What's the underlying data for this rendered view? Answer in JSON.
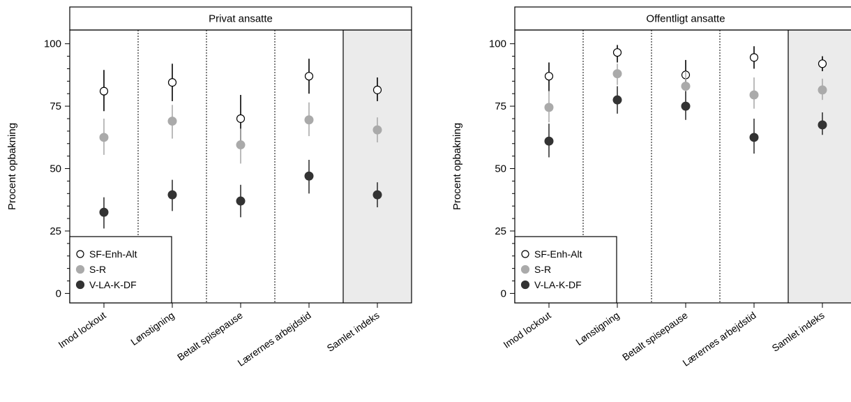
{
  "chart_data": {
    "type": "scatter",
    "ylabel": "Procent opbakning",
    "ylim": [
      0,
      100
    ],
    "yticks": [
      0,
      25,
      50,
      75,
      100
    ],
    "categories": [
      "Imod lockout",
      "Lønstigning",
      "Betalt spisepause",
      "Lærernes arbejdstid",
      "Samlet indeks"
    ],
    "highlighted_category": "Samlet indeks",
    "highlight_color": "#ebebeb",
    "series_styles": [
      {
        "name": "SF-Enh-Alt",
        "marker": "open-circle",
        "color": "#000000"
      },
      {
        "name": "S-R",
        "marker": "filled-circle",
        "color": "#aaaaaa"
      },
      {
        "name": "V-LA-K-DF",
        "marker": "filled-circle",
        "color": "#333333"
      }
    ],
    "legend_position": "bottom-left",
    "panels": [
      {
        "title": "Privat ansatte",
        "series": [
          {
            "name": "SF-Enh-Alt",
            "values": [
              81,
              84.5,
              70,
              87,
              81.5
            ],
            "lower": [
              73,
              77,
              61,
              80,
              77
            ],
            "upper": [
              89.5,
              92,
              79.5,
              94,
              86.5
            ]
          },
          {
            "name": "S-R",
            "values": [
              62.5,
              69,
              59.5,
              69.5,
              65.5
            ],
            "lower": [
              55.5,
              62,
              52,
              63,
              60.5
            ],
            "upper": [
              70,
              75.5,
              66,
              76.5,
              70.5
            ]
          },
          {
            "name": "V-LA-K-DF",
            "values": [
              32.5,
              39.5,
              37,
              47,
              39.5
            ],
            "lower": [
              26,
              33,
              30.5,
              40,
              34.5
            ],
            "upper": [
              38.5,
              45.5,
              43.5,
              53.5,
              44.5
            ]
          }
        ]
      },
      {
        "title": "Offentligt ansatte",
        "series": [
          {
            "name": "SF-Enh-Alt",
            "values": [
              87,
              96.5,
              87.5,
              94.5,
              92
            ],
            "lower": [
              81,
              92.5,
              82,
              90,
              89
            ],
            "upper": [
              92.5,
              99.5,
              93.5,
              99,
              95
            ]
          },
          {
            "name": "S-R",
            "values": [
              74.5,
              88,
              83,
              79.5,
              81.5
            ],
            "lower": [
              68.5,
              83.5,
              77,
              74,
              77.5
            ],
            "upper": [
              81,
              92,
              89,
              86.5,
              86
            ]
          },
          {
            "name": "V-LA-K-DF",
            "values": [
              61,
              77.5,
              75,
              62.5,
              67.5
            ],
            "lower": [
              54.5,
              72,
              69.5,
              56,
              63.5
            ],
            "upper": [
              68,
              83,
              81,
              70,
              72.5
            ]
          }
        ]
      }
    ]
  }
}
